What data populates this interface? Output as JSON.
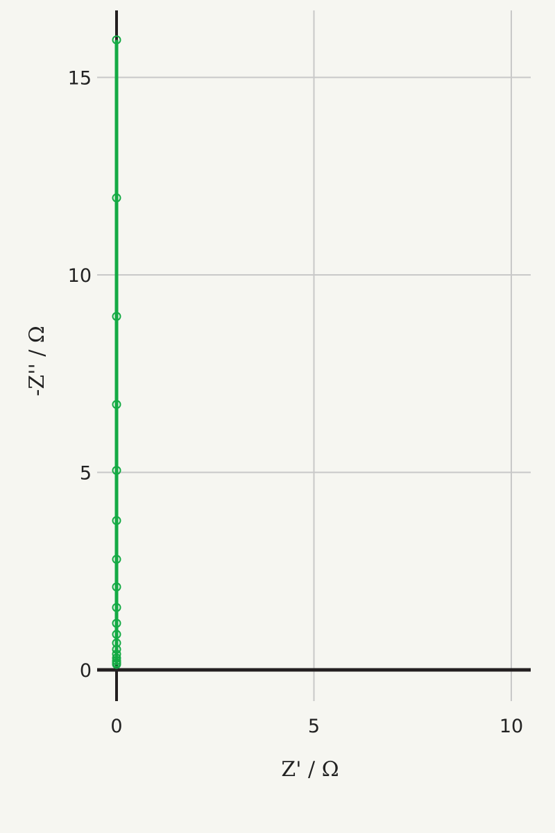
{
  "chart_data": {
    "type": "scatter",
    "xlabel": "Z' / Ω",
    "ylabel": "-Z'' / Ω",
    "xlim": [
      -0.05,
      10.5
    ],
    "ylim": [
      -0.8,
      16.8
    ],
    "x_ticks": [
      0,
      5,
      10
    ],
    "y_ticks": [
      0,
      5,
      10,
      15
    ],
    "x_tick_labels": [
      "0",
      "5",
      "10"
    ],
    "y_tick_labels": [
      "0",
      "5",
      "10",
      "15"
    ],
    "grid": true,
    "series": [
      {
        "color": "#14aa44",
        "marker": "open-circle",
        "line": true,
        "x": [
          0,
          0,
          0,
          0,
          0,
          0,
          0,
          0,
          0,
          0,
          0,
          0,
          0,
          0,
          0,
          0,
          0,
          0
        ],
        "y": [
          0.14,
          0.18,
          0.23,
          0.3,
          0.4,
          0.52,
          0.68,
          0.9,
          1.18,
          1.58,
          2.1,
          2.8,
          3.78,
          5.05,
          6.72,
          8.95,
          11.95,
          15.95
        ]
      }
    ]
  }
}
